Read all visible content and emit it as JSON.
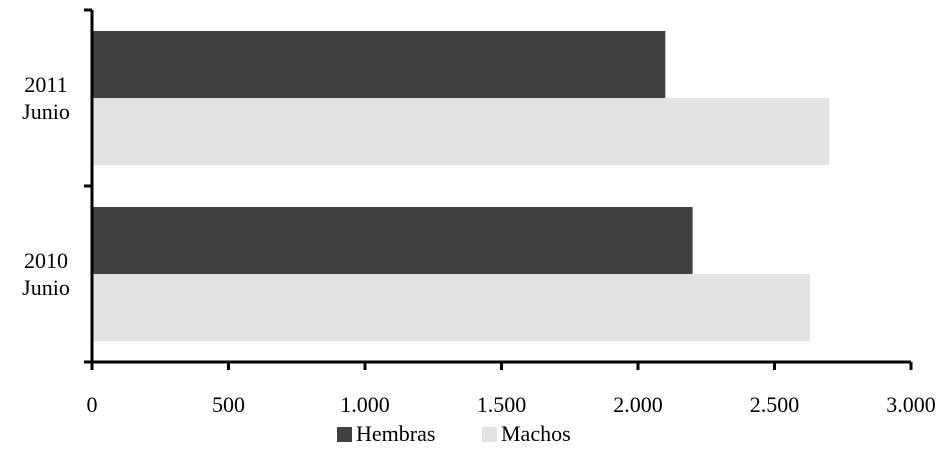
{
  "chart_data": {
    "type": "bar",
    "orientation": "horizontal",
    "categories": [
      "2011 Junio",
      "2010 Junio"
    ],
    "category_lines": [
      [
        "2011",
        "Junio"
      ],
      [
        "2010",
        "Junio"
      ]
    ],
    "series": [
      {
        "name": "Hembras",
        "values": [
          2100,
          2200
        ],
        "color": "#404040"
      },
      {
        "name": "Machos",
        "values": [
          2700,
          2630
        ],
        "color": "#e3e3e3"
      }
    ],
    "xlim": [
      0,
      3000
    ],
    "xticks": [
      0,
      500,
      1000,
      1500,
      2000,
      2500,
      3000
    ],
    "xtick_labels": [
      "0",
      "500",
      "1.000",
      "1.500",
      "2.000",
      "2.500",
      "3.000"
    ],
    "grid": false,
    "legend_position": "bottom"
  }
}
